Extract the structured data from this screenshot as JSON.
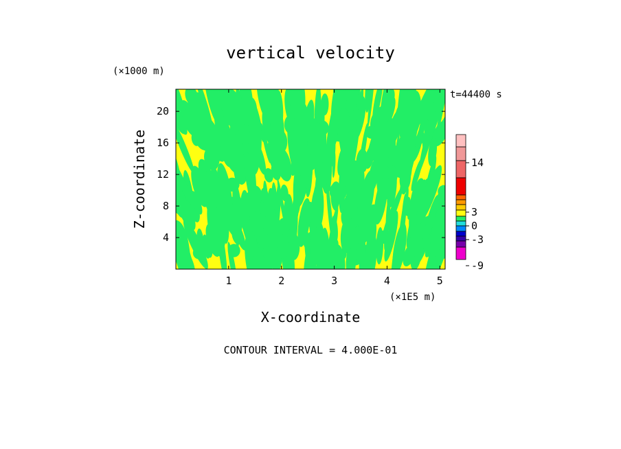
{
  "chart_data": {
    "type": "heatmap",
    "title": "vertical velocity",
    "xlabel": "X-coordinate",
    "ylabel": "Z-coordinate",
    "x_unit": "(×1E5 m)",
    "y_unit": "(×1000 m)",
    "time_label": "t=44400 s",
    "footer": "CONTOUR INTERVAL = 4.000E-01",
    "xlim": [
      0,
      5.1
    ],
    "ylim": [
      0,
      22.8
    ],
    "x_ticks": [
      1,
      2,
      3,
      4,
      5
    ],
    "y_ticks": [
      4,
      8,
      12,
      16,
      20
    ],
    "field_colors": {
      "negative": "#22ee66",
      "positive": "#ffff11"
    },
    "field_description_values": {
      "min_shown": -0.4,
      "max_shown": 0.4
    },
    "colorbar": {
      "tick_labels": [
        "14",
        "3",
        "0",
        "-3",
        "-9"
      ],
      "segments": [
        {
          "color": "#ffc0c0"
        },
        {
          "color": "#f09898"
        },
        {
          "color": "#ee6666"
        },
        {
          "color": "#ee0000"
        },
        {
          "color": "#ff6600"
        },
        {
          "color": "#ff9900"
        },
        {
          "color": "#ffcc00"
        },
        {
          "color": "#ffff11"
        },
        {
          "color": "#22ee66"
        },
        {
          "color": "#22dddd"
        },
        {
          "color": "#0088ff"
        },
        {
          "color": "#0000cc"
        },
        {
          "color": "#3300aa"
        },
        {
          "color": "#7700aa"
        },
        {
          "color": "#ee00cc"
        }
      ]
    }
  }
}
